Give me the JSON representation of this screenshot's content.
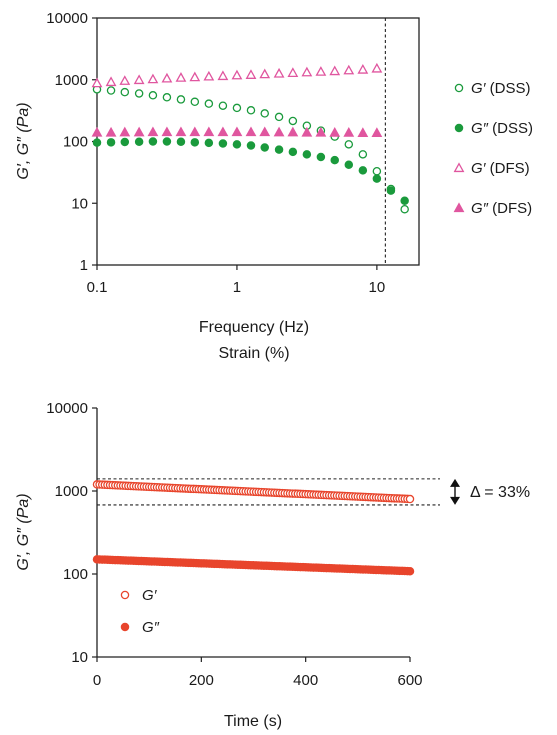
{
  "chart_data": [
    {
      "type": "scatter",
      "xlabel": "Frequency (Hz)",
      "xlabel2": "Strain (%)",
      "ylabel": "G′, G″ (Pa)",
      "x_scale": "log",
      "y_scale": "log",
      "xlim": [
        0.1,
        20
      ],
      "ylim": [
        1,
        10000
      ],
      "x_ticks": [
        "0.1",
        "1",
        "10"
      ],
      "y_ticks": [
        "1",
        "10",
        "100",
        "1000",
        "10000"
      ],
      "vline_x": 11.5,
      "legend_position": "right",
      "colors": {
        "dss": "#1a9a3c",
        "dfs": "#e0569f"
      },
      "series": [
        {
          "name": "G′ (DSS)",
          "sym": "G′",
          "tag": "(DSS)",
          "marker": "circle-open",
          "color": "#1a9a3c",
          "x": [
            0.1,
            0.126,
            0.158,
            0.2,
            0.251,
            0.316,
            0.398,
            0.5,
            0.63,
            0.794,
            1.0,
            1.26,
            1.58,
            2.0,
            2.51,
            3.16,
            3.98,
            5.0,
            6.3,
            7.94,
            10.0,
            12.6,
            15.8
          ],
          "y": [
            700,
            670,
            630,
            600,
            560,
            520,
            480,
            440,
            410,
            380,
            350,
            320,
            285,
            250,
            215,
            180,
            150,
            120,
            90,
            62,
            33,
            17,
            8
          ]
        },
        {
          "name": "G″ (DSS)",
          "sym": "G″",
          "tag": "(DSS)",
          "marker": "circle-filled",
          "color": "#1a9a3c",
          "x": [
            0.1,
            0.126,
            0.158,
            0.2,
            0.251,
            0.316,
            0.398,
            0.5,
            0.63,
            0.794,
            1.0,
            1.26,
            1.58,
            2.0,
            2.51,
            3.16,
            3.98,
            5.0,
            6.3,
            7.94,
            10.0,
            12.6,
            15.8
          ],
          "y": [
            96,
            97,
            98,
            99,
            100,
            100,
            99,
            97,
            95,
            93,
            90,
            86,
            80,
            74,
            68,
            62,
            56,
            50,
            42,
            34,
            25,
            16,
            11
          ]
        },
        {
          "name": "G′ (DFS)",
          "sym": "G′",
          "tag": "(DFS)",
          "marker": "triangle-open",
          "color": "#e0569f",
          "x": [
            0.1,
            0.126,
            0.158,
            0.2,
            0.251,
            0.316,
            0.398,
            0.5,
            0.63,
            0.794,
            1.0,
            1.26,
            1.58,
            2.0,
            2.51,
            3.16,
            3.98,
            5.0,
            6.3,
            7.94,
            10.0
          ],
          "y": [
            880,
            920,
            960,
            990,
            1020,
            1050,
            1080,
            1100,
            1130,
            1150,
            1180,
            1200,
            1230,
            1260,
            1290,
            1320,
            1350,
            1380,
            1420,
            1460,
            1520
          ]
        },
        {
          "name": "G″ (DFS)",
          "sym": "G″",
          "tag": "(DFS)",
          "marker": "triangle-filled",
          "color": "#e0569f",
          "x": [
            0.1,
            0.126,
            0.158,
            0.2,
            0.251,
            0.316,
            0.398,
            0.5,
            0.63,
            0.794,
            1.0,
            1.26,
            1.58,
            2.0,
            2.51,
            3.16,
            3.98,
            5.0,
            6.3,
            7.94,
            10.0
          ],
          "y": [
            140,
            140,
            141,
            141,
            142,
            142,
            142,
            142,
            142,
            142,
            142,
            142,
            142,
            141,
            141,
            140,
            140,
            139,
            139,
            138,
            138
          ]
        }
      ]
    },
    {
      "type": "scatter",
      "xlabel": "Time (s)",
      "ylabel": "G′, G″ (Pa)",
      "x_scale": "linear",
      "y_scale": "log",
      "xlim": [
        0,
        600
      ],
      "ylim": [
        10,
        10000
      ],
      "x_ticks": [
        "0",
        "200",
        "400",
        "600"
      ],
      "y_ticks": [
        "10",
        "100",
        "1000",
        "10000"
      ],
      "hlines_y": [
        1400,
        680
      ],
      "annotation": "Δ = 33%",
      "legend_position": "lower-left",
      "color": "#e8452c",
      "series": [
        {
          "name": "G′",
          "marker": "circle-open",
          "color": "#e8452c",
          "y_start": 1200,
          "y_end": 800
        },
        {
          "name": "G″",
          "marker": "circle-filled",
          "color": "#e8452c",
          "y_start": 150,
          "y_end": 108
        }
      ]
    }
  ]
}
